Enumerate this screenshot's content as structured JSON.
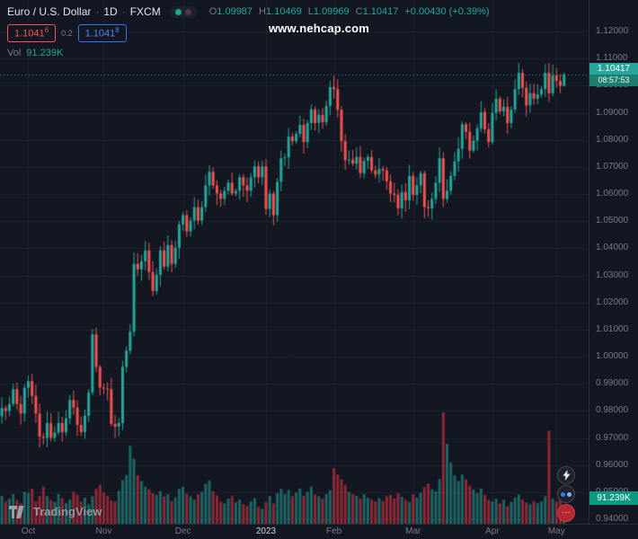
{
  "watermark": "www.nehcap.com",
  "header": {
    "symbol": "Euro / U.S. Dollar",
    "separator": "·",
    "interval": "1D",
    "exchange": "FXCM",
    "ohlc": {
      "o_key": "O",
      "o_val": "1.09987",
      "h_key": "H",
      "h_val": "1.10469",
      "l_key": "L",
      "l_val": "1.09969",
      "c_key": "C",
      "c_val": "1.10417",
      "change": "+0.00430 (+0.39%)"
    },
    "quote": {
      "sell": "1.1041",
      "sell_sup": "6",
      "spread": "0.2",
      "buy": "1.1041",
      "buy_sup": "8"
    },
    "volume": {
      "key": "Vol",
      "value": "91.239K"
    }
  },
  "price_tag": {
    "price": "1.10417",
    "countdown": "08:57:53"
  },
  "volume_tag": {
    "value": "91.239K"
  },
  "footer": {
    "brand": "TradingView"
  },
  "icons": {
    "ellipsis": "···"
  },
  "colors": {
    "background": "#131722",
    "up": "#26a69a",
    "down": "#ef5350",
    "vol_up": "rgba(38,166,154,0.55)",
    "vol_down": "rgba(242,54,69,0.55)",
    "grid": "rgba(42,46,57,0.55)",
    "axis_text": "#787b86",
    "price_tag_bg": "#26a69a",
    "countdown_bg": "#1e7d71",
    "volume_tag_bg": "#0b9981",
    "sell": "#f7525f",
    "buy": "#3a6ff8"
  },
  "chart_data": {
    "type": "candlestick",
    "title": "Euro / U.S. Dollar · 1D · FXCM",
    "symbol": "EURUSD",
    "timeframe": "1D",
    "price_range": [
      0.94,
      1.12
    ],
    "slots": 156,
    "price_ticks": [
      "1.12000",
      "1.11000",
      "1.10000",
      "1.09000",
      "1.08000",
      "1.07000",
      "1.06000",
      "1.05000",
      "1.04000",
      "1.03000",
      "1.02000",
      "1.01000",
      "1.00000",
      "0.99000",
      "0.98000",
      "0.97000",
      "0.96000",
      "0.95000",
      "0.94000"
    ],
    "time_ticks": [
      {
        "label": "Oct",
        "index": 7
      },
      {
        "label": "Nov",
        "index": 27
      },
      {
        "label": "Dec",
        "index": 48
      },
      {
        "label": "2023",
        "index": 70,
        "major": true
      },
      {
        "label": "Feb",
        "index": 88
      },
      {
        "label": "Mar",
        "index": 109
      },
      {
        "label": "Apr",
        "index": 130
      },
      {
        "label": "May",
        "index": 147
      }
    ],
    "closes": [
      0.981,
      0.98,
      0.9825,
      0.988,
      0.9825,
      0.979,
      0.9885,
      0.991,
      0.9855,
      0.979,
      0.9705,
      0.97,
      0.9755,
      0.97,
      0.972,
      0.9755,
      0.9721,
      0.9772,
      0.984,
      0.9812,
      0.9748,
      0.9722,
      0.9782,
      0.9868,
      1.0082,
      0.9962,
      0.9886,
      0.9882,
      0.988,
      0.9752,
      0.9742,
      0.9755,
      0.9962,
      1.0022,
      1.0092,
      1.0342,
      1.0322,
      1.0352,
      1.0392,
      1.0312,
      1.0242,
      1.0302,
      1.0392,
      1.0332,
      1.0412,
      1.0342,
      1.0402,
      1.0488,
      1.0522,
      1.0462,
      1.0502,
      1.0552,
      1.0502,
      1.0552,
      1.0632,
      1.0682,
      1.0632,
      1.0602,
      1.0582,
      1.0612,
      1.0642,
      1.0602,
      1.0612,
      1.0662,
      1.0632,
      1.0612,
      1.0662,
      1.0702,
      1.0662,
      1.0702,
      1.0545,
      1.0602,
      1.0522,
      1.0645,
      1.0732,
      1.0735,
      1.0812,
      1.0795,
      1.0822,
      1.0855,
      1.0792,
      1.0862,
      1.0912,
      1.0862,
      1.0892,
      1.0865,
      1.0925,
      1.0995,
      1.0987,
      1.0911,
      1.0795,
      1.0725,
      1.0727,
      1.0712,
      1.0737,
      1.0677,
      1.0722,
      1.0737,
      1.0687,
      1.0672,
      1.0692,
      1.0687,
      1.0647,
      1.0602,
      1.0597,
      1.0547,
      1.0607,
      1.0577,
      1.0667,
      1.0597,
      1.0632,
      1.0677,
      1.0552,
      1.0547,
      1.0582,
      1.0642,
      1.0732,
      1.0582,
      1.0612,
      1.0667,
      1.072,
      1.0767,
      1.0857,
      1.083,
      1.076,
      1.0797,
      1.0842,
      1.0902,
      1.0839,
      1.0792,
      1.09,
      1.0952,
      1.0905,
      1.0922,
      1.0862,
      1.0912,
      1.0987,
      1.1047,
      1.0992,
      1.0927,
      1.0972,
      1.0952,
      1.0967,
      1.0987,
      1.1047,
      1.0972,
      1.1037,
      1.1017,
      1.0999,
      1.10417
    ],
    "volumes_k": [
      150,
      120,
      135,
      160,
      128,
      110,
      172,
      165,
      188,
      122,
      150,
      200,
      148,
      128,
      118,
      160,
      138,
      112,
      130,
      172,
      156,
      120,
      140,
      105,
      148,
      188,
      210,
      168,
      150,
      125,
      120,
      178,
      235,
      262,
      420,
      350,
      260,
      230,
      200,
      185,
      165,
      155,
      175,
      148,
      158,
      122,
      142,
      188,
      200,
      162,
      148,
      130,
      158,
      172,
      215,
      232,
      175,
      152,
      120,
      110,
      135,
      148,
      115,
      130,
      105,
      95,
      120,
      138,
      90,
      80,
      118,
      150,
      110,
      165,
      188,
      160,
      182,
      148,
      168,
      190,
      150,
      172,
      200,
      158,
      148,
      135,
      160,
      180,
      300,
      265,
      240,
      210,
      172,
      160,
      150,
      135,
      158,
      140,
      130,
      120,
      138,
      122,
      148,
      155,
      135,
      165,
      145,
      128,
      118,
      160,
      140,
      168,
      198,
      215,
      185,
      175,
      240,
      600,
      430,
      330,
      260,
      230,
      265,
      240,
      205,
      185,
      165,
      190,
      155,
      128,
      120,
      135,
      110,
      128,
      95,
      118,
      140,
      158,
      130,
      115,
      105,
      122,
      110,
      120,
      148,
      500,
      135,
      120,
      165,
      91.239
    ],
    "last_candle": {
      "open": 1.09987,
      "high": 1.10469,
      "low": 1.09969,
      "close": 1.10417
    },
    "last_volume_k": 91.239
  }
}
